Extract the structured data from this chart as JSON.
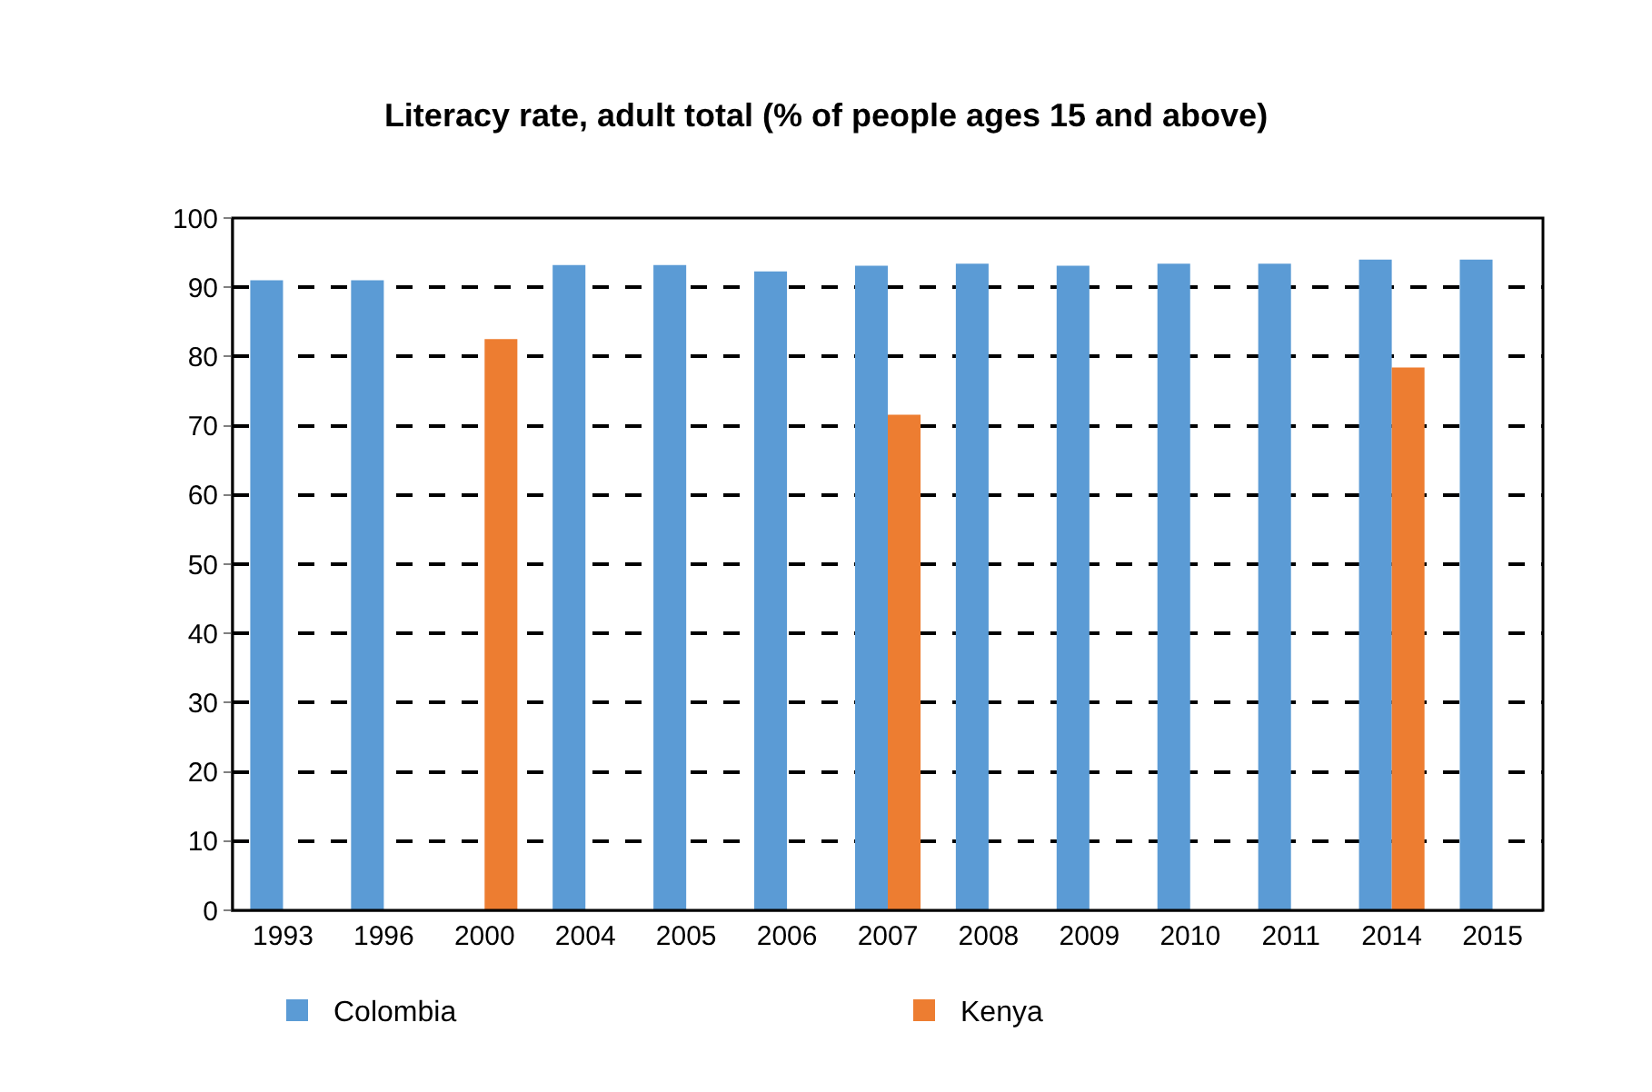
{
  "chart_data": {
    "type": "bar",
    "title": "Literacy rate, adult total (% of people ages 15 and above)",
    "categories": [
      "1993",
      "1996",
      "2000",
      "2004",
      "2005",
      "2006",
      "2007",
      "2008",
      "2009",
      "2010",
      "2011",
      "2014",
      "2015"
    ],
    "series": [
      {
        "name": "Colombia",
        "color": "#5b9bd5",
        "values": [
          91.0,
          91.0,
          null,
          93.2,
          93.2,
          92.3,
          93.1,
          93.4,
          93.1,
          93.4,
          93.4,
          94.0,
          94.0
        ]
      },
      {
        "name": "Kenya",
        "color": "#ed7d31",
        "values": [
          null,
          null,
          82.5,
          null,
          null,
          null,
          71.6,
          null,
          null,
          null,
          null,
          78.4,
          null
        ]
      }
    ],
    "ylim": [
      0,
      100
    ],
    "yticks": [
      0,
      10,
      20,
      30,
      40,
      50,
      60,
      70,
      80,
      90,
      100
    ],
    "grid": "y",
    "legend": "bottom"
  }
}
